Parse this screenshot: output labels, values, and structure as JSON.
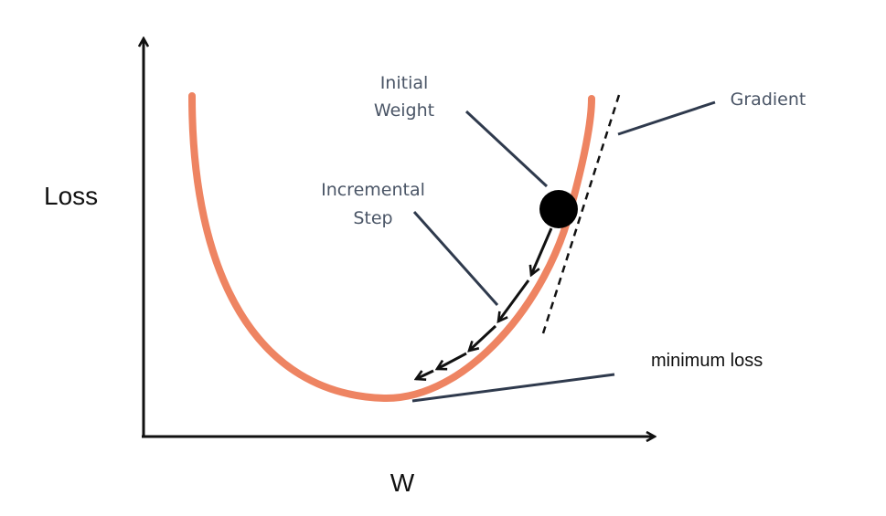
{
  "axes": {
    "y_label": "Loss",
    "x_label": "W"
  },
  "labels": {
    "initial_weight_line1": "Initial",
    "initial_weight_line2": "Weight",
    "incremental_step_line1": "Incremental",
    "incremental_step_line2": "Step",
    "gradient": "Gradient",
    "minimum_loss": "minimum loss"
  },
  "colors": {
    "curve": "#ee8462",
    "axis": "#111111",
    "pointer": "#2f3a4d",
    "ball": "#000000",
    "label_text": "#4a5566"
  }
}
